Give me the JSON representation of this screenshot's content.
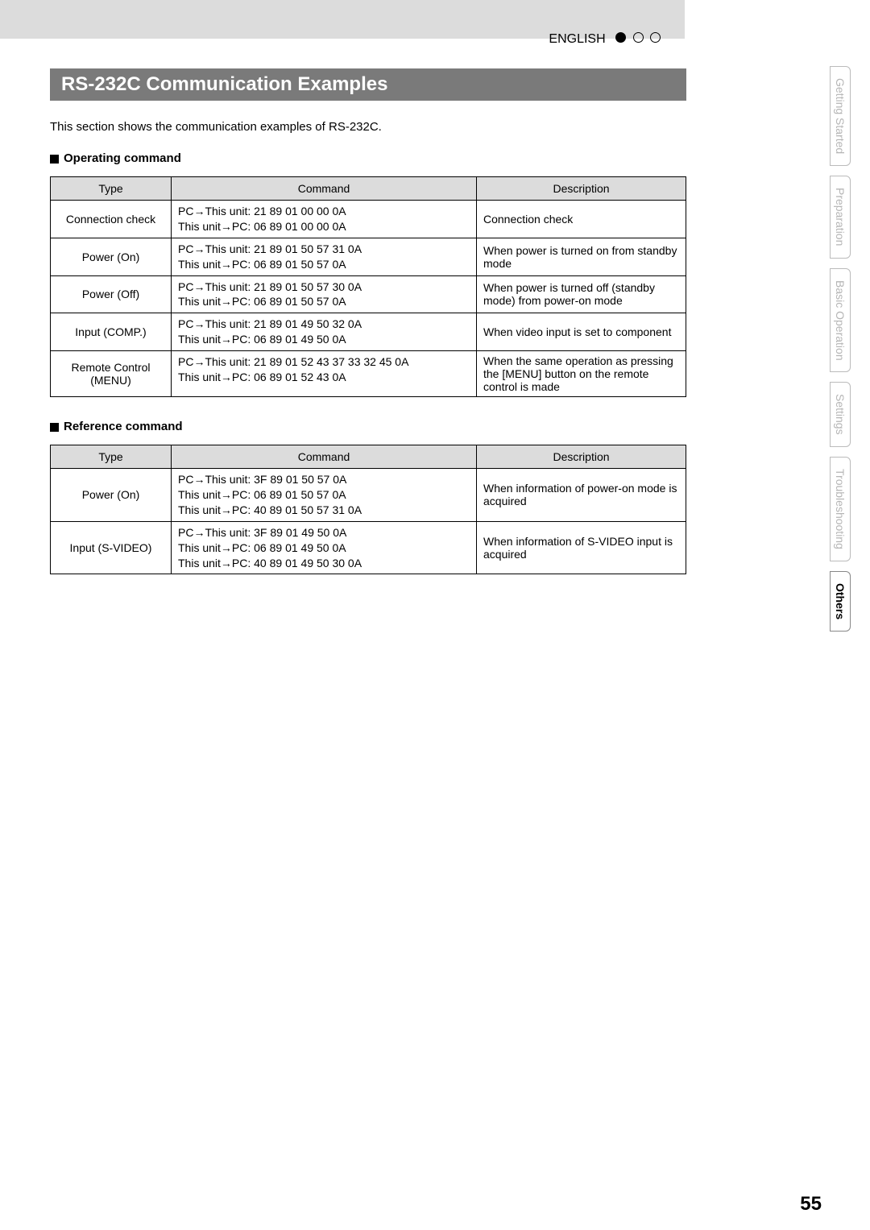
{
  "header": {
    "language": "ENGLISH"
  },
  "title": "RS-232C Communication Examples",
  "intro": "This section shows the communication examples of RS-232C.",
  "sections": {
    "operating": {
      "heading": "Operating command",
      "columns": [
        "Type",
        "Command",
        "Description"
      ],
      "rows": [
        {
          "type": "Connection check",
          "cmd": [
            "PC→This unit:  21  89  01  00  00  0A",
            "This unit→PC:  06  89  01  00  00  0A"
          ],
          "desc": "Connection check"
        },
        {
          "type": "Power (On)",
          "cmd": [
            "PC→This unit:  21  89  01  50  57  31  0A",
            "This unit→PC:  06  89  01  50  57  0A"
          ],
          "desc": "When power is turned on from standby mode"
        },
        {
          "type": "Power (Off)",
          "cmd": [
            "PC→This unit:  21  89  01  50  57  30  0A",
            "This unit→PC:  06  89  01  50  57  0A"
          ],
          "desc": "When power is turned off (standby mode) from power-on mode"
        },
        {
          "type": "Input (COMP.)",
          "cmd": [
            "PC→This unit:  21  89  01  49  50  32  0A",
            "This unit→PC:  06  89  01  49  50  0A"
          ],
          "desc": "When video input is set to component"
        },
        {
          "type": "Remote Control (MENU)",
          "cmd": [
            "PC→This unit:  21  89  01  52  43  37  33  32  45  0A",
            "This unit→PC:  06  89  01  52  43  0A"
          ],
          "desc": "When the same operation as pressing the [MENU] button on the remote control is made"
        }
      ]
    },
    "reference": {
      "heading": "Reference command",
      "columns": [
        "Type",
        "Command",
        "Description"
      ],
      "rows": [
        {
          "type": "Power (On)",
          "cmd": [
            "PC→This unit:  3F  89  01  50  57  0A",
            "This unit→PC:  06  89  01  50  57  0A",
            "This unit→PC:  40  89  01  50  57  31  0A"
          ],
          "desc": "When information of power-on mode is acquired"
        },
        {
          "type": "Input (S-VIDEO)",
          "cmd": [
            "PC→This unit:  3F  89  01  49  50  0A",
            "This unit→PC:  06  89  01  49  50  0A",
            "This unit→PC:  40  89  01  49  50  30  0A"
          ],
          "desc": "When information of S-VIDEO input is acquired"
        }
      ]
    }
  },
  "tabs": [
    {
      "label": "Getting Started",
      "active": false
    },
    {
      "label": "Preparation",
      "active": false
    },
    {
      "label": "Basic Operation",
      "active": false
    },
    {
      "label": "Settings",
      "active": false
    },
    {
      "label": "Troubleshooting",
      "active": false
    },
    {
      "label": "Others",
      "active": true
    }
  ],
  "page_number": "55"
}
